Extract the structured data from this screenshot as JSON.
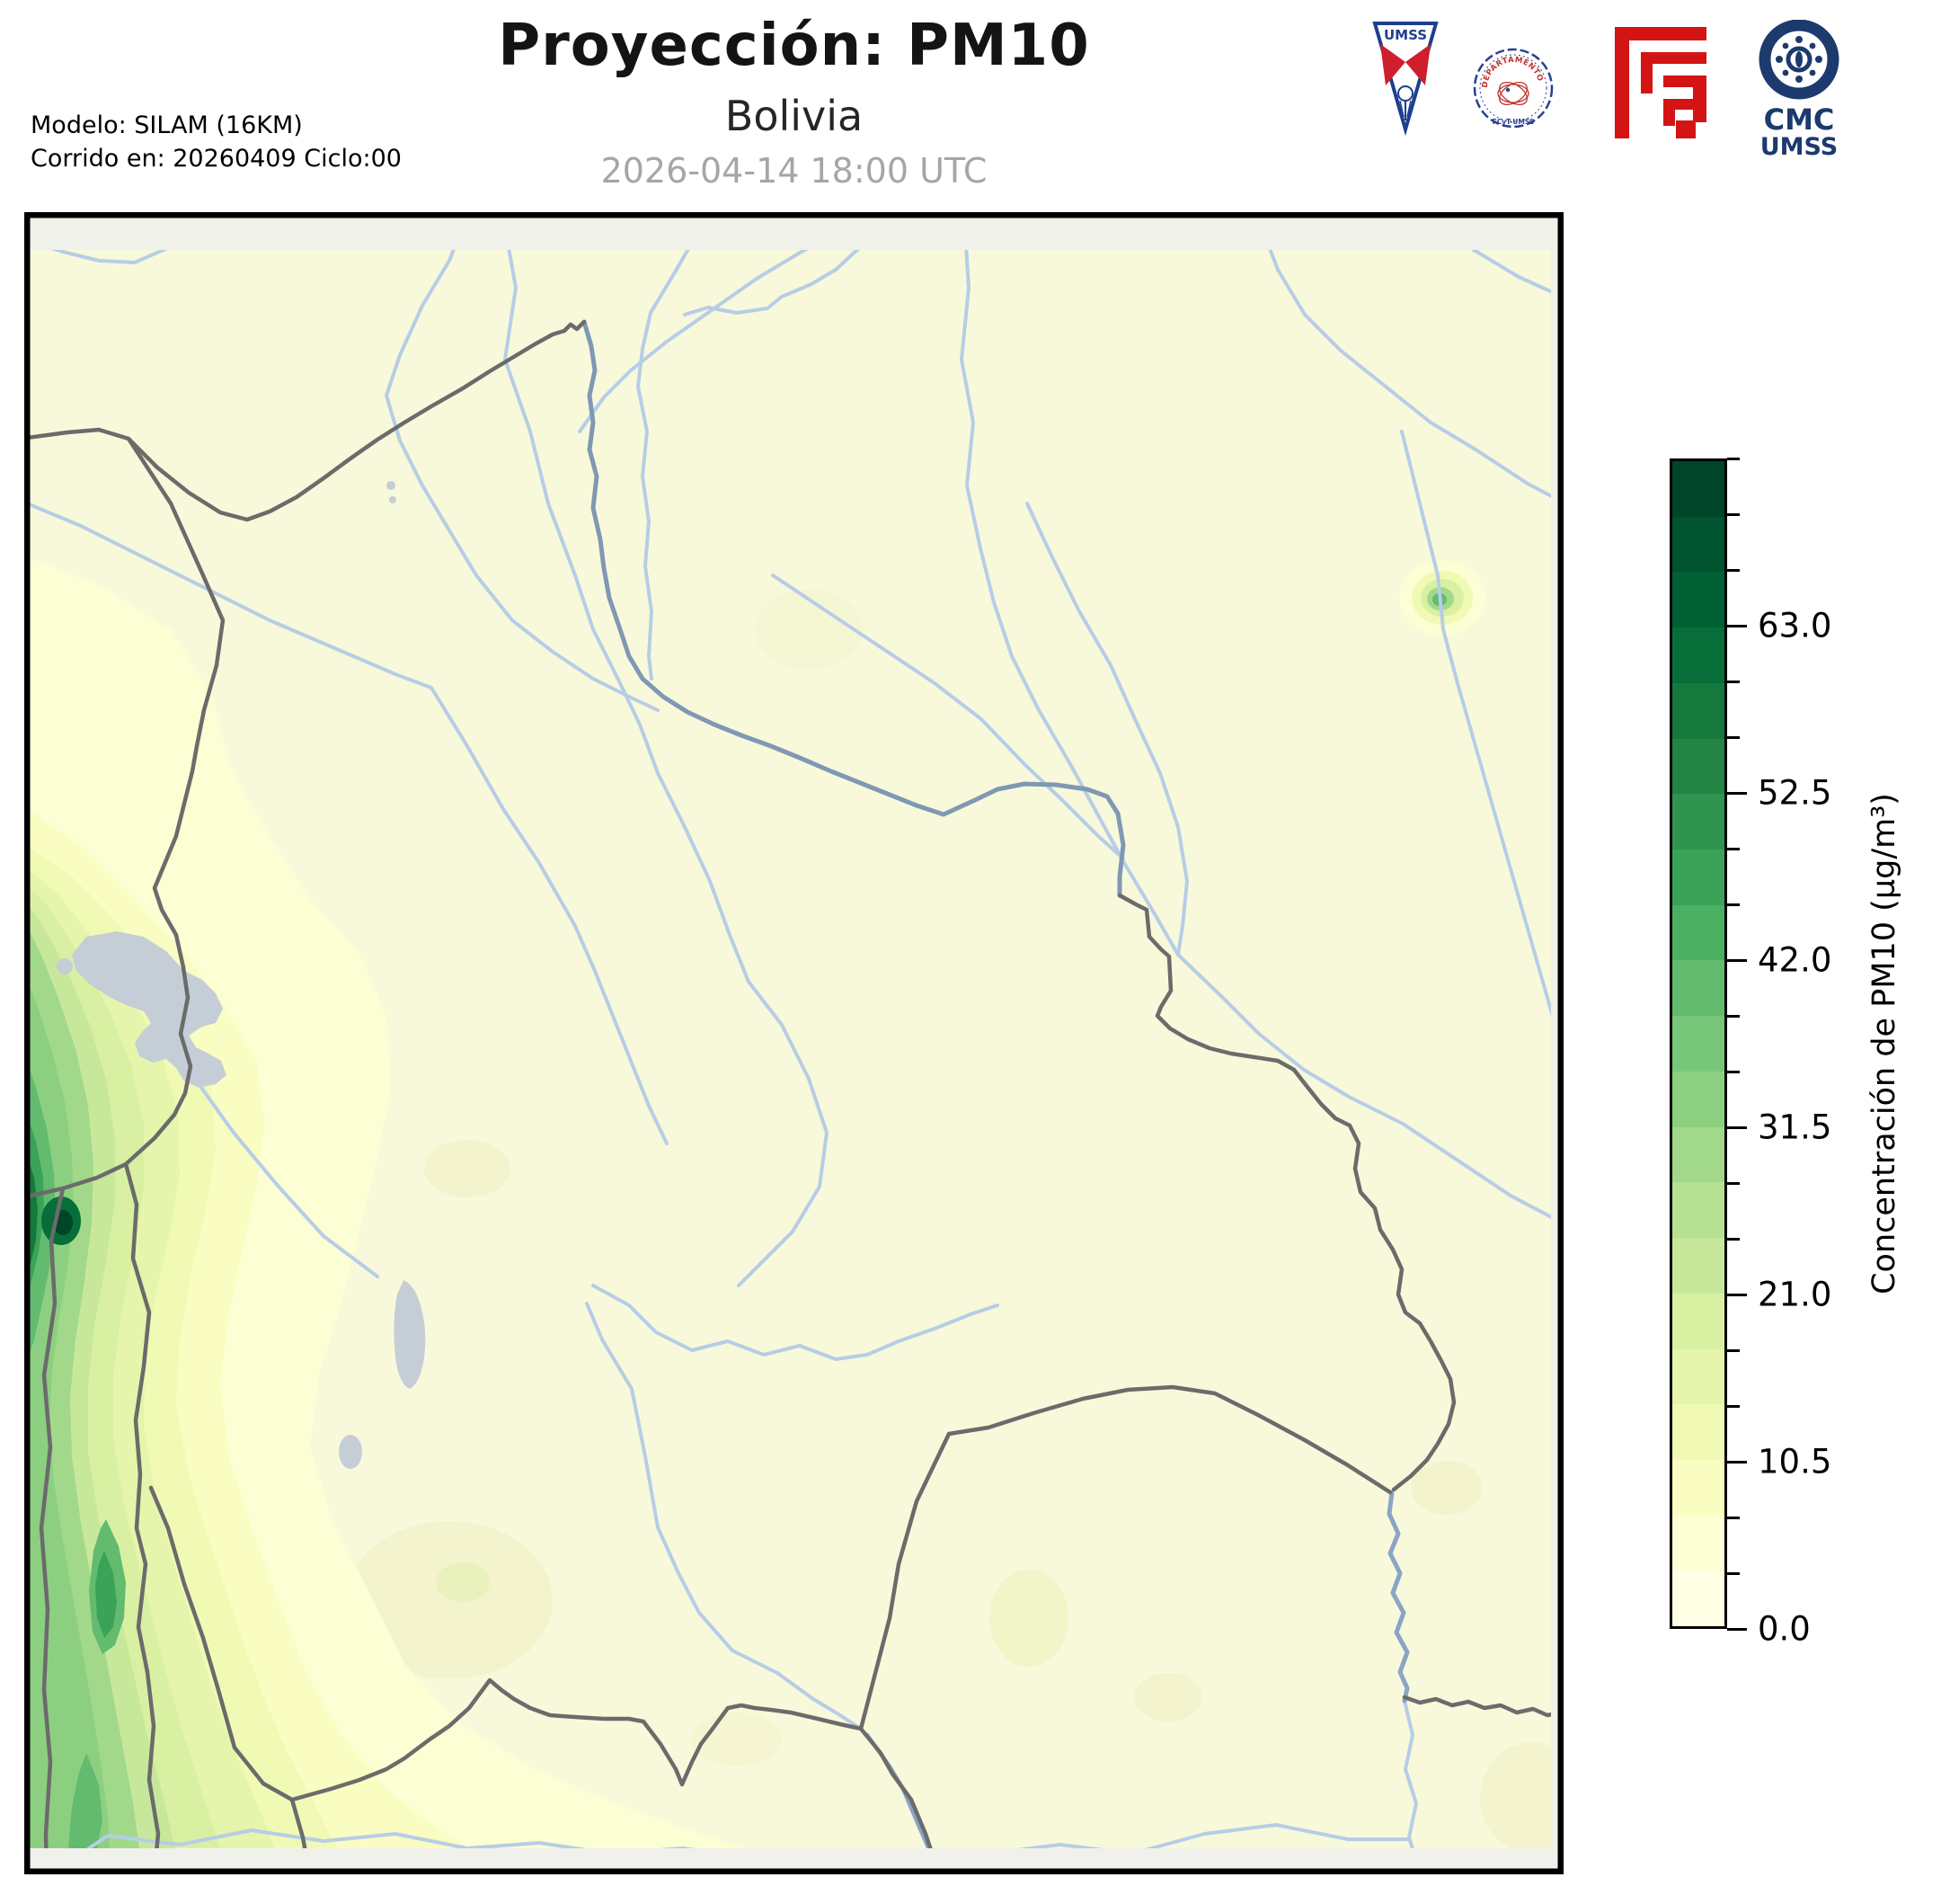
{
  "header": {
    "title": "Proyección: PM10",
    "subtitle": "Bolivia",
    "datetime": "2026-04-14 18:00 UTC",
    "model_line1": "Modelo: SILAM (16KM)",
    "model_line2": "Corrido en: 20260409 Ciclo:00"
  },
  "logos": {
    "pennant_text": "UMSS",
    "seal_text": "DEPARTAMENTO DE FÍSICA",
    "seal_subtext": "FCyT-UMSS",
    "cmc_line1": "CMC",
    "cmc_line2": "UMSS"
  },
  "colorbar": {
    "label": "Concentración de PM10 (µg/m³)",
    "unit": "µg/m³",
    "min": 0.0,
    "max": 73.5,
    "step": 3.5,
    "tick_labels": [
      "0.0",
      "10.5",
      "21.0",
      "31.5",
      "42.0",
      "52.5",
      "63.0"
    ],
    "colors": [
      "#ffffe5",
      "#fcfed3",
      "#f9fdc2",
      "#f1fab5",
      "#e5f5ac",
      "#d9f0a3",
      "#c7e89b",
      "#b6e192",
      "#a2d88a",
      "#8dcf81",
      "#78c679",
      "#62bb6e",
      "#4cb063",
      "#3ba358",
      "#2f944d",
      "#238443",
      "#15793e",
      "#076e39",
      "#006134",
      "#00532f",
      "#004529"
    ]
  },
  "map": {
    "background": "#f8f9db",
    "outside_band": "#f0f1eb",
    "frame_color": "#000000",
    "border_color": "#6b6b6b",
    "river_color": "#b7cde6",
    "border_river_color": "#7f98b3",
    "dark_river_color": "#8aa5c4",
    "lake_color": "#c5ced6"
  },
  "chart_data": {
    "type": "heatmap",
    "title": "Proyección: PM10 — Bolivia",
    "colormap": "YlGn",
    "value_label": "Concentración de PM10 (µg/m³)",
    "value_range": [
      0.0,
      73.5
    ],
    "contour_interval": 3.5,
    "labeled_levels": [
      0.0,
      10.5,
      21.0,
      31.5,
      42.0,
      52.5,
      63.0
    ],
    "notes_visible_features": [
      "high PM10 plume along southwestern edge (Andes/Chile border), peak above 63",
      "secondary maximum near 140,1770 map px about 21-28",
      "small hotspot in northeast near Brazil border about 17-24",
      "background over most of Bolivia 0-7"
    ]
  }
}
